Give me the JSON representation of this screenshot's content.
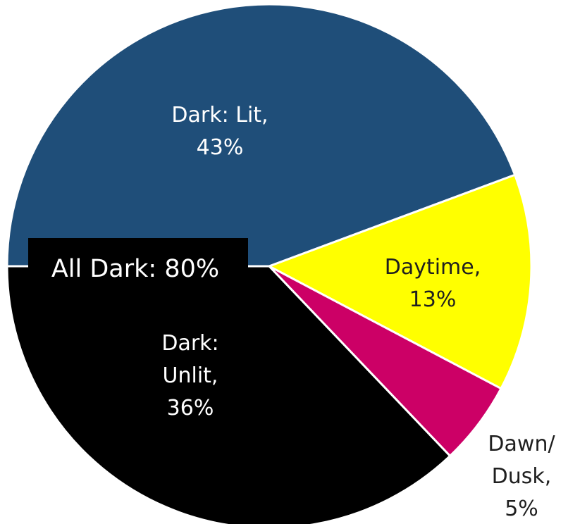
{
  "chart_data": {
    "type": "pie",
    "start_angle_deg": 180,
    "direction": "clockwise",
    "slices": [
      {
        "label": "Dark: Lit",
        "value": 43,
        "value_text": "43%",
        "color": "#1f4e79",
        "label_color": "#ffffff",
        "label_lines": [
          "Dark: Lit,",
          "43%"
        ]
      },
      {
        "label": "Daytime",
        "value": 13,
        "value_text": "13%",
        "color": "#ffff00",
        "label_color": "#1f1f1f",
        "label_lines": [
          "Daytime,",
          "13%"
        ]
      },
      {
        "label": "Dawn/Dusk",
        "value": 5,
        "value_text": "5%",
        "color": "#cc0066",
        "label_color": "#1f1f1f",
        "label_lines": [
          "Dawn/",
          "Dusk,",
          "5%"
        ]
      },
      {
        "label": "Dark: Unlit",
        "value": 36,
        "value_text": "36%",
        "color": "#000000",
        "label_color": "#ffffff",
        "label_lines": [
          "Dark:",
          "Unlit,",
          "36%"
        ]
      }
    ],
    "annotation": {
      "text": "All Dark: 80%",
      "background": "#000000",
      "text_color": "#ffffff"
    },
    "legend": "none",
    "title": ""
  }
}
